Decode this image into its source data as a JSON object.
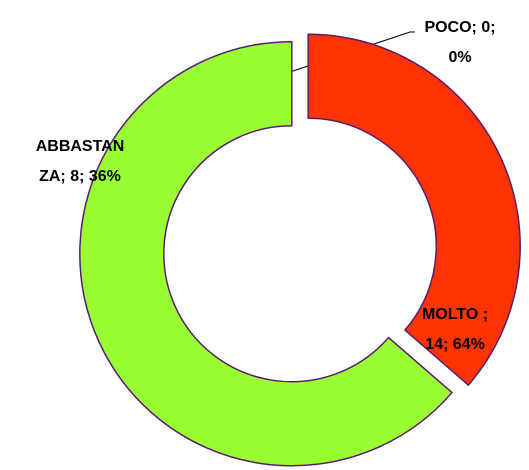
{
  "chart_data": {
    "type": "donut",
    "categories": [
      "POCO",
      "ABBASTANZA",
      "MOLTO "
    ],
    "values": [
      0,
      8,
      14
    ],
    "value_labels": [
      [
        "POCO; 0;",
        "0%"
      ],
      [
        "ABBASTAN",
        "ZA; 8; 36%"
      ],
      [
        "MOLTO ;",
        "14; 64%"
      ]
    ],
    "colors": [
      "#4f81bd",
      "#ff3300",
      "#99ff33"
    ]
  }
}
